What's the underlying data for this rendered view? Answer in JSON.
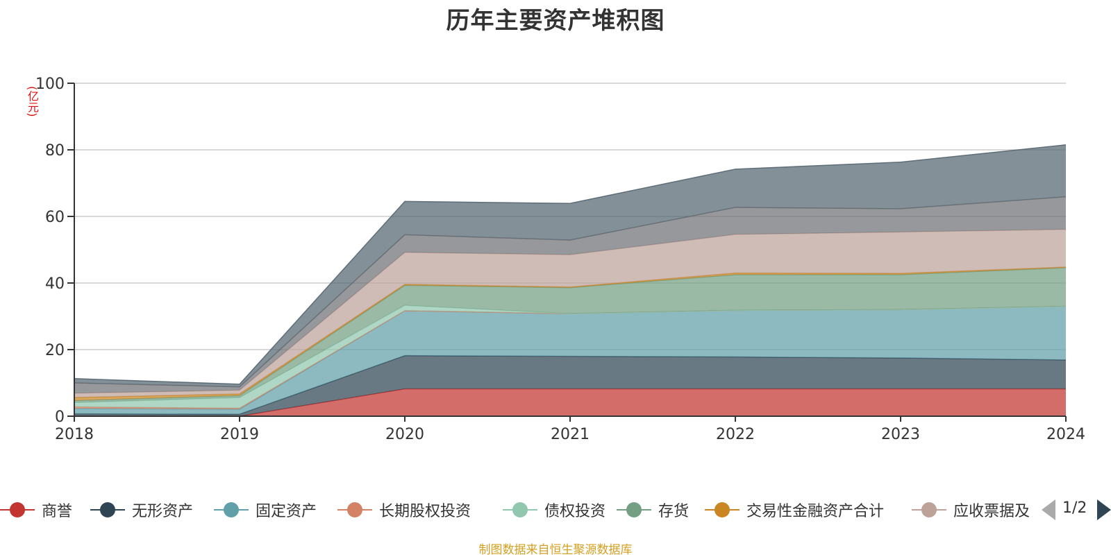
{
  "chart_data": {
    "type": "area",
    "stacked": true,
    "title": "历年主要资产堆积图",
    "ylabel": "(亿元)",
    "xlabel": "",
    "ylim": [
      0,
      100
    ],
    "yticks": [
      0,
      20,
      40,
      60,
      80,
      100
    ],
    "grid": true,
    "legend_position": "bottom",
    "categories": [
      "2018",
      "2019",
      "2020",
      "2021",
      "2022",
      "2023",
      "2024"
    ],
    "series": [
      {
        "name": "商誉",
        "color": "#c23531",
        "values": [
          0,
          0,
          8.2,
          8.2,
          8.2,
          8.2,
          8.2
        ],
        "in_legend": true
      },
      {
        "name": "无形资产",
        "color": "#2f4554",
        "values": [
          0.7,
          0.6,
          10,
          9.8,
          9.6,
          9.3,
          8.7
        ],
        "in_legend": true
      },
      {
        "name": "固定资产",
        "color": "#61a0a8",
        "values": [
          1.6,
          1.5,
          13.5,
          12.8,
          14,
          14.5,
          16.1
        ],
        "in_legend": true
      },
      {
        "name": "长期股权投资",
        "color": "#d48265",
        "values": [
          0.5,
          0.3,
          0,
          0,
          0,
          0,
          0
        ],
        "in_legend": true
      },
      {
        "name": "债权投资",
        "color": "#91c7ae",
        "values": [
          1.3,
          3.2,
          1.6,
          0,
          0,
          0,
          0
        ],
        "in_legend": true
      },
      {
        "name": "存货",
        "color": "#749f83",
        "values": [
          0.6,
          0.6,
          6,
          7.8,
          10.7,
          10.5,
          11.6
        ],
        "in_legend": true
      },
      {
        "name": "交易性金融资产合计",
        "color": "#ca8622",
        "values": [
          0.9,
          0.5,
          0.3,
          0.2,
          0.5,
          0.4,
          0.2
        ],
        "in_legend": true
      },
      {
        "name": "应收票据及应收账款",
        "color": "#bda29a",
        "values": [
          1.3,
          1.1,
          9.6,
          9.7,
          11.6,
          12.4,
          11.3
        ],
        "in_legend": true
      },
      {
        "name": "",
        "color": "#6e7074",
        "values": [
          3.1,
          1.0,
          5.3,
          4.4,
          8.1,
          7,
          9.8
        ],
        "in_legend": false
      },
      {
        "name": "",
        "color": "#546570",
        "values": [
          1.3,
          0.8,
          10,
          11,
          11.5,
          14,
          15.6
        ],
        "in_legend": false
      }
    ]
  },
  "legend_labels": [
    "商誉",
    "无形资产",
    "固定资产",
    "长期股权投资",
    "债权投资",
    "存货",
    "交易性金融资产合计",
    "应收票据及"
  ],
  "pager": {
    "text": "1/2"
  },
  "footer": {
    "source": "制图数据来自恒生聚源数据库"
  }
}
